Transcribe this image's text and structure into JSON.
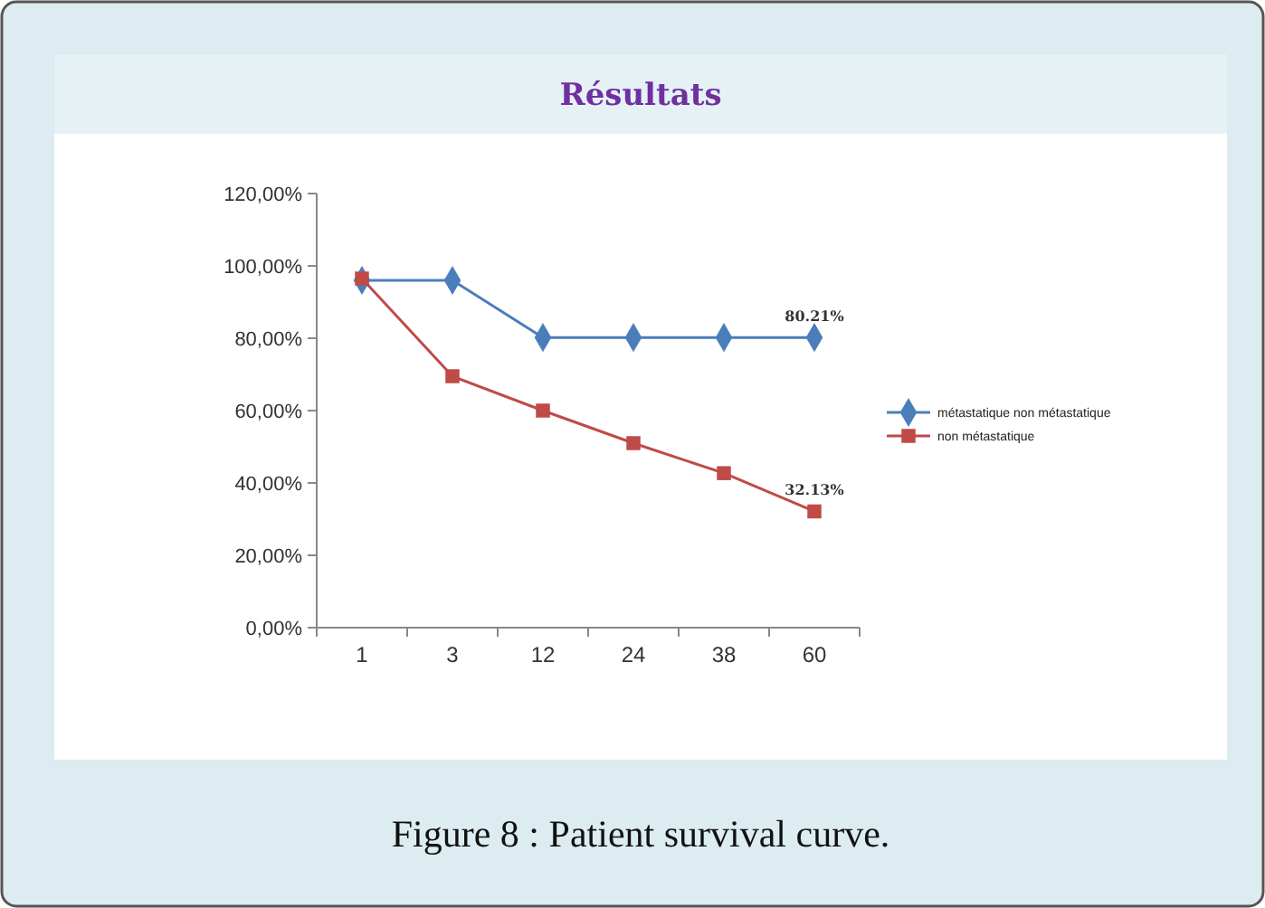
{
  "chart_data": {
    "type": "line",
    "title": "Résultats",
    "categories": [
      "1",
      "3",
      "12",
      "24",
      "38",
      "60"
    ],
    "series": [
      {
        "name": "métastatique non métastatique",
        "color": "#4a7ebb",
        "marker": "diamond",
        "values": [
          96,
          96,
          80.21,
          80.21,
          80.21,
          80.21
        ],
        "value_labels": [
          null,
          null,
          null,
          null,
          null,
          "80.21%"
        ]
      },
      {
        "name": "non métastatique",
        "color": "#be4b48",
        "marker": "square",
        "values": [
          96.5,
          69.5,
          60,
          51,
          42.7,
          32.13
        ],
        "value_labels": [
          null,
          null,
          null,
          null,
          null,
          "32.13%"
        ]
      }
    ],
    "ylim": [
      0,
      120
    ],
    "yticks": [
      {
        "value": 0,
        "label": "0,00%"
      },
      {
        "value": 20,
        "label": "20,00%"
      },
      {
        "value": 40,
        "label": "40,00%"
      },
      {
        "value": 60,
        "label": "60,00%"
      },
      {
        "value": 80,
        "label": "80,00%"
      },
      {
        "value": 100,
        "label": "100,00%"
      },
      {
        "value": 120,
        "label": "120,00%"
      }
    ],
    "grid": false,
    "legend": "right",
    "annotations": [
      "Figure 8 : Patient survival curve."
    ]
  }
}
